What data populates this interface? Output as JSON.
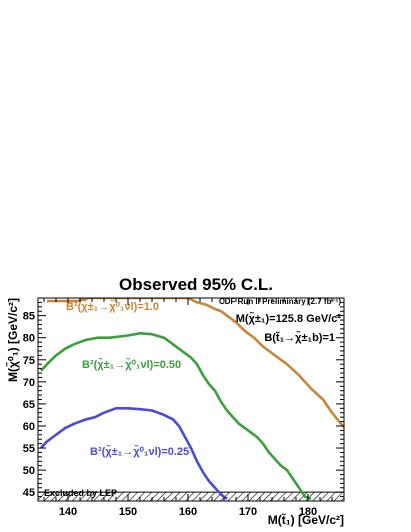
{
  "chart_data": {
    "type": "line",
    "title": "Observed 95% C.L.",
    "xlabel": "M(t̃₁) [GeV/c²]",
    "ylabel": "M(χ̃⁰₁) [GeV/c²]",
    "xlim": [
      135,
      186
    ],
    "ylim": [
      43,
      89
    ],
    "x_ticks": [
      140,
      150,
      160,
      170,
      180
    ],
    "y_ticks": [
      45,
      50,
      55,
      60,
      65,
      70,
      75,
      80,
      85
    ],
    "grid": false,
    "annotations": {
      "experiment": "CDF Run II Preliminary (2.7 fb⁻¹)",
      "chargino_mass": "M(χ̃±₁)=125.8 GeV/c²",
      "stop_branching": "B(t̃₁→χ̃±₁b)=1",
      "lep_region": "Excluded by LEP"
    },
    "series": [
      {
        "name": "B²(χ̃±₁→χ̃⁰₁νl)=1.0",
        "color": "#c8863a",
        "x": [
          136.5,
          137.8,
          139.5,
          141.5,
          143.5,
          150,
          160,
          161.5,
          163,
          164.5,
          165.5,
          166.5,
          168,
          169.5,
          171,
          172.5,
          174.5,
          176.5,
          178.5,
          180.5,
          182.5,
          184,
          185.5,
          186.5
        ],
        "y": [
          88.3,
          88.3,
          88.3,
          88.3,
          89.0,
          89.0,
          89.0,
          88.0,
          87.5,
          86.5,
          86.0,
          85.0,
          83.5,
          81.5,
          80.0,
          78.0,
          76.0,
          74.0,
          71.5,
          68.5,
          66.0,
          63.0,
          60.5,
          59.0
        ]
      },
      {
        "name": "B²(χ̃±₁→χ̃⁰₁νl)=0.50",
        "color": "#3ba03b",
        "x": [
          135.5,
          136.5,
          138,
          139.5,
          141,
          143,
          145,
          147,
          150,
          152,
          154,
          156,
          157.5,
          158.5,
          159.5,
          160.5,
          161.5,
          162.5,
          163.5,
          164.5,
          165.5,
          166.5,
          167.5,
          168.5,
          169.5,
          170.5,
          171.5,
          172.5,
          173.5,
          174.5,
          175.5,
          176.5,
          177.5,
          178.5,
          179.5,
          180.5
        ],
        "y": [
          72.5,
          74,
          76,
          77.5,
          78.5,
          79.5,
          80,
          80,
          80.5,
          81,
          80.8,
          80,
          78.5,
          77.5,
          76.5,
          75.5,
          74,
          71.5,
          69.5,
          68,
          65.5,
          63.5,
          62,
          60.5,
          59.5,
          58.5,
          57.5,
          56,
          54,
          52.5,
          51,
          50,
          48,
          46,
          44,
          43.5
        ]
      },
      {
        "name": "B²(χ̃±₁→χ̃⁰₁νl)=0.25",
        "color": "#4b4bd8",
        "x": [
          135.5,
          136.5,
          137.5,
          138.5,
          139.5,
          141,
          143,
          144.5,
          146,
          148,
          150,
          152,
          154,
          156,
          157.5,
          158.5,
          159.5,
          160.5,
          161.5,
          162.5,
          163.5,
          164.5,
          165.5,
          166.5
        ],
        "y": [
          55,
          56.5,
          57.5,
          58.5,
          59.5,
          60.5,
          61.5,
          62,
          63,
          64,
          64,
          63.8,
          63.5,
          62.5,
          61.5,
          60,
          57.5,
          55,
          52,
          49.5,
          47.5,
          46,
          44.5,
          43.5
        ]
      }
    ]
  }
}
